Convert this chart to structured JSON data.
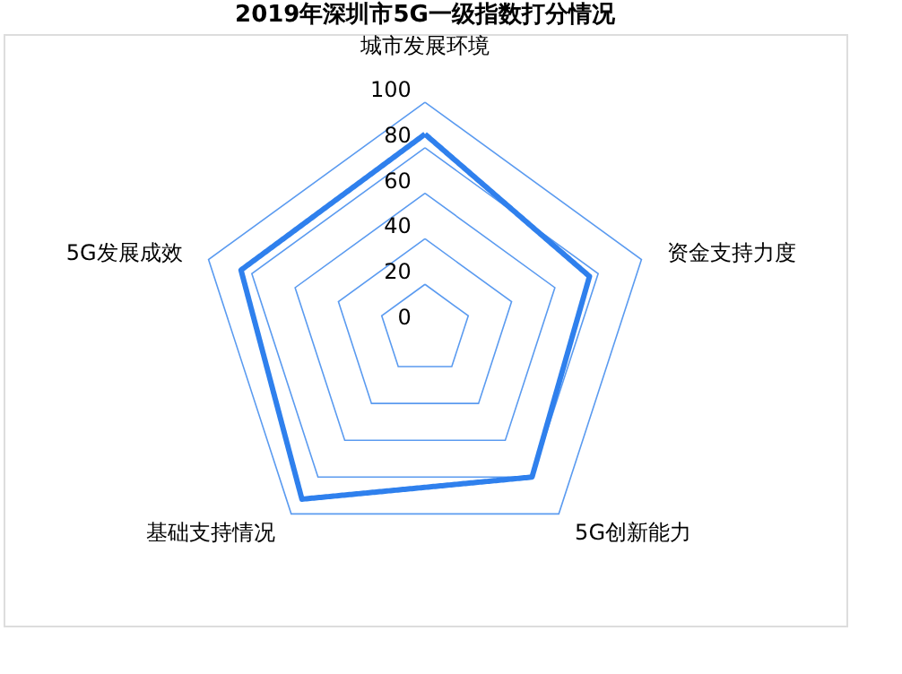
{
  "chart_data": {
    "type": "radar",
    "title": "2019年深圳市5G一级指数打分情况",
    "categories": [
      "城市发展环境",
      "资金支持力度",
      "5G创新能力",
      "基础支持情况",
      "5G发展成效"
    ],
    "series": [
      {
        "color": "#2f80ed",
        "values": [
          86,
          76,
          80,
          92,
          85
        ]
      }
    ],
    "ylim": [
      0,
      100
    ],
    "yticks": [
      0,
      20,
      40,
      60,
      80,
      100
    ],
    "grid": true,
    "marker": "none",
    "line_style": "solid"
  }
}
